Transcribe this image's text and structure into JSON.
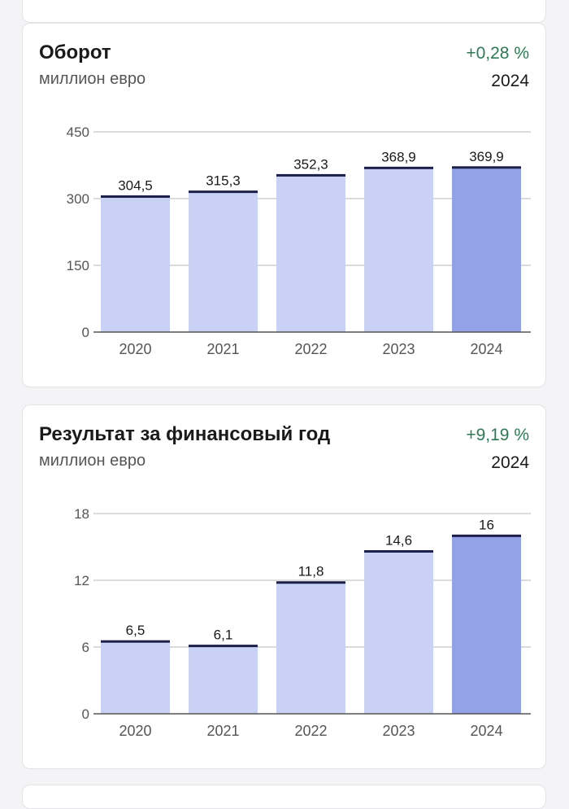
{
  "colors": {
    "bar": "#c9d2f5",
    "bar_highlight": "#93a2e8",
    "bar_cap": "#1c1f4a",
    "grid": "#cfcfcf",
    "axis": "#555555",
    "positive_change": "#2e7a56"
  },
  "cards": [
    {
      "title": "Оборот",
      "subtitle": "миллион евро",
      "change": "+0,28 %",
      "year": "2024"
    },
    {
      "title": "Результат за финансовый год",
      "subtitle": "миллион евро",
      "change": "+9,19 %",
      "year": "2024"
    }
  ],
  "chart_data": [
    {
      "type": "bar",
      "title": "Оборот",
      "categories": [
        "2020",
        "2021",
        "2022",
        "2023",
        "2024"
      ],
      "values": [
        304.5,
        315.3,
        352.3,
        368.9,
        369.9
      ],
      "value_labels": [
        "304,5",
        "315,3",
        "352,3",
        "368,9",
        "369,9"
      ],
      "yticks": [
        0,
        150,
        300,
        450
      ],
      "ylim": [
        0,
        450
      ],
      "grid": true,
      "highlight_index": 4
    },
    {
      "type": "bar",
      "title": "Результат за финансовый год",
      "categories": [
        "2020",
        "2021",
        "2022",
        "2023",
        "2024"
      ],
      "values": [
        6.5,
        6.1,
        11.8,
        14.6,
        16
      ],
      "value_labels": [
        "6,5",
        "6,1",
        "11,8",
        "14,6",
        "16"
      ],
      "yticks": [
        0,
        6,
        12,
        18
      ],
      "ylim": [
        0,
        18
      ],
      "grid": true,
      "highlight_index": 4
    }
  ]
}
